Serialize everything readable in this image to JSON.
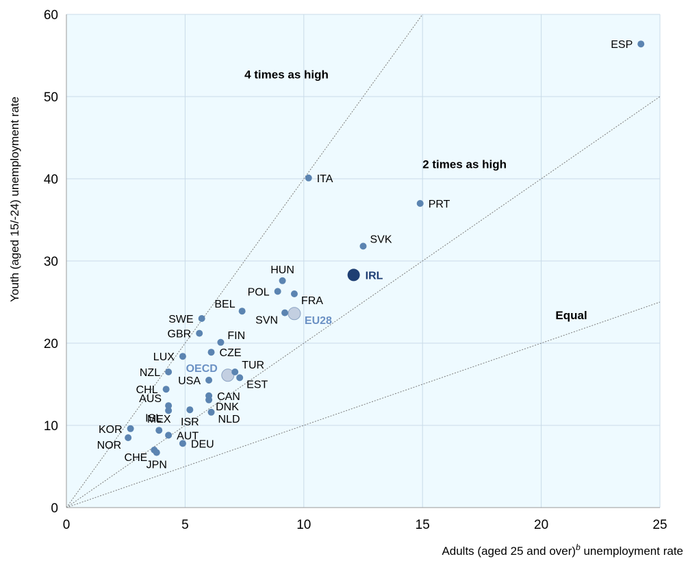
{
  "chart_data": {
    "type": "scatter",
    "xlabel": "Adults (aged 25 and over)",
    "xlabel_sup": "b",
    "xlabel_suffix": " unemployment rate",
    "ylabel": "Youth (aged 15/-24) unemployment rate",
    "xlim": [
      0,
      25
    ],
    "ylim": [
      0,
      60
    ],
    "xticks": [
      0,
      5,
      10,
      15,
      20,
      25
    ],
    "yticks": [
      0,
      10,
      20,
      30,
      40,
      50,
      60
    ],
    "grid": true,
    "colors": {
      "background": "#eefaff",
      "grid": "#c9dbe8",
      "point": "#5b84b1",
      "highlight": "#1f3f73",
      "aggregate_fill": "#c3cfe1",
      "aggregate_label": "#6b91c4",
      "reference_line": "#7a7a7a"
    },
    "reference_lines": [
      {
        "label": "Equal",
        "slope": 1,
        "label_at": [
          20.6,
          22.9
        ]
      },
      {
        "label": "2 times as high",
        "slope": 2,
        "label_at": [
          15,
          41.3
        ]
      },
      {
        "label": "4 times as high",
        "slope": 4,
        "label_at": [
          7.5,
          52.2
        ]
      }
    ],
    "points": [
      {
        "label": "ESP",
        "x": 24.2,
        "y": 56.4,
        "pos": "left"
      },
      {
        "label": "ITA",
        "x": 10.2,
        "y": 40.1,
        "pos": "right"
      },
      {
        "label": "PRT",
        "x": 14.9,
        "y": 37.0,
        "pos": "right"
      },
      {
        "label": "SVK",
        "x": 12.5,
        "y": 31.8,
        "pos": "right_up"
      },
      {
        "label": "IRL",
        "x": 12.1,
        "y": 28.3,
        "pos": "right",
        "style": "highlight"
      },
      {
        "label": "HUN",
        "x": 9.1,
        "y": 27.6,
        "pos": "up"
      },
      {
        "label": "POL",
        "x": 8.9,
        "y": 26.3,
        "pos": "left"
      },
      {
        "label": "FRA",
        "x": 9.6,
        "y": 26.0,
        "pos": "right_down"
      },
      {
        "label": "EU28",
        "x": 9.6,
        "y": 23.6,
        "pos": "right_down",
        "style": "aggregate"
      },
      {
        "label": "SVN",
        "x": 9.2,
        "y": 23.7,
        "pos": "left_down"
      },
      {
        "label": "BEL",
        "x": 7.4,
        "y": 23.9,
        "pos": "left_up"
      },
      {
        "label": "SWE",
        "x": 5.7,
        "y": 23.0,
        "pos": "left"
      },
      {
        "label": "GBR",
        "x": 5.6,
        "y": 21.2,
        "pos": "left"
      },
      {
        "label": "FIN",
        "x": 6.5,
        "y": 20.1,
        "pos": "right_up"
      },
      {
        "label": "LUX",
        "x": 4.9,
        "y": 18.4,
        "pos": "left"
      },
      {
        "label": "CZE",
        "x": 6.1,
        "y": 18.9,
        "pos": "right"
      },
      {
        "label": "NZL",
        "x": 4.3,
        "y": 16.5,
        "pos": "left"
      },
      {
        "label": "OECD",
        "x": 6.8,
        "y": 16.1,
        "pos": "left_up",
        "style": "aggregate"
      },
      {
        "label": "TUR",
        "x": 7.1,
        "y": 16.5,
        "pos": "right_up"
      },
      {
        "label": "EST",
        "x": 7.3,
        "y": 15.8,
        "pos": "right_down"
      },
      {
        "label": "USA",
        "x": 6.0,
        "y": 15.5,
        "pos": "left"
      },
      {
        "label": "CHL",
        "x": 4.2,
        "y": 14.4,
        "pos": "left"
      },
      {
        "label": "CAN",
        "x": 6.0,
        "y": 13.6,
        "pos": "right"
      },
      {
        "label": "DNK",
        "x": 6.0,
        "y": 13.1,
        "pos": "right_down"
      },
      {
        "label": "AUS",
        "x": 4.3,
        "y": 12.4,
        "pos": "left_up"
      },
      {
        "label": "ISL",
        "x": 4.3,
        "y": 11.8,
        "pos": "left_down"
      },
      {
        "label": "MEX",
        "x": 3.9,
        "y": 9.4,
        "pos": "up"
      },
      {
        "label": "ISR",
        "x": 5.2,
        "y": 11.9,
        "pos": "down"
      },
      {
        "label": "NLD",
        "x": 6.1,
        "y": 11.6,
        "pos": "right_down"
      },
      {
        "label": "KOR",
        "x": 2.7,
        "y": 9.6,
        "pos": "left"
      },
      {
        "label": "NOR",
        "x": 2.6,
        "y": 8.5,
        "pos": "left_down"
      },
      {
        "label": "AUT",
        "x": 4.3,
        "y": 8.8,
        "pos": "right"
      },
      {
        "label": "DEU",
        "x": 4.9,
        "y": 7.8,
        "pos": "right"
      },
      {
        "label": "CHE",
        "x": 3.7,
        "y": 7.0,
        "pos": "left_down"
      },
      {
        "label": "JPN",
        "x": 3.8,
        "y": 6.7,
        "pos": "down"
      }
    ]
  }
}
